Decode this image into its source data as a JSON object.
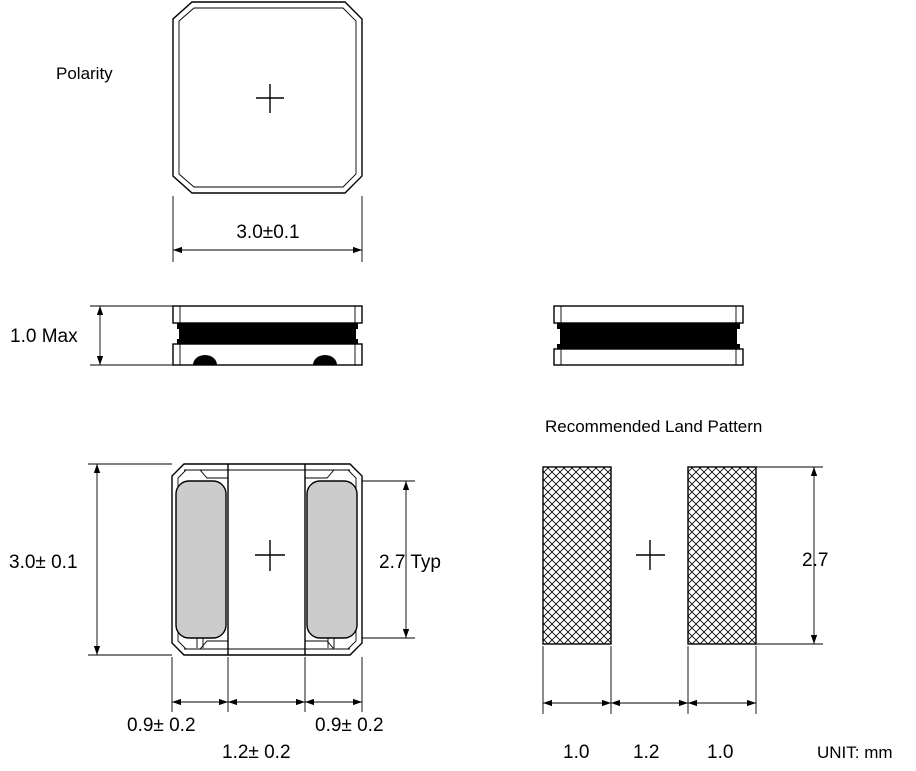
{
  "labels": {
    "polarity": "Polarity",
    "top_width": "3.0±0.1",
    "height_max": "1.0 Max",
    "bottom_height": "3.0± 0.1",
    "terminal_height": "2.7 Typ",
    "left_terminal_width": "0.9± 0.2",
    "gap_width": "1.2± 0.2",
    "right_terminal_width": "0.9± 0.2",
    "land_pattern_title": "Recommended Land Pattern",
    "land_height": "2.7",
    "land_pad_left": "1.0",
    "land_gap": "1.2",
    "land_pad_right": "1.0",
    "unit": "UNIT:   mm"
  },
  "colors": {
    "stroke": "#000000",
    "terminal_fill": "#cccccc",
    "winding_band": "#000000",
    "background": "#ffffff"
  }
}
